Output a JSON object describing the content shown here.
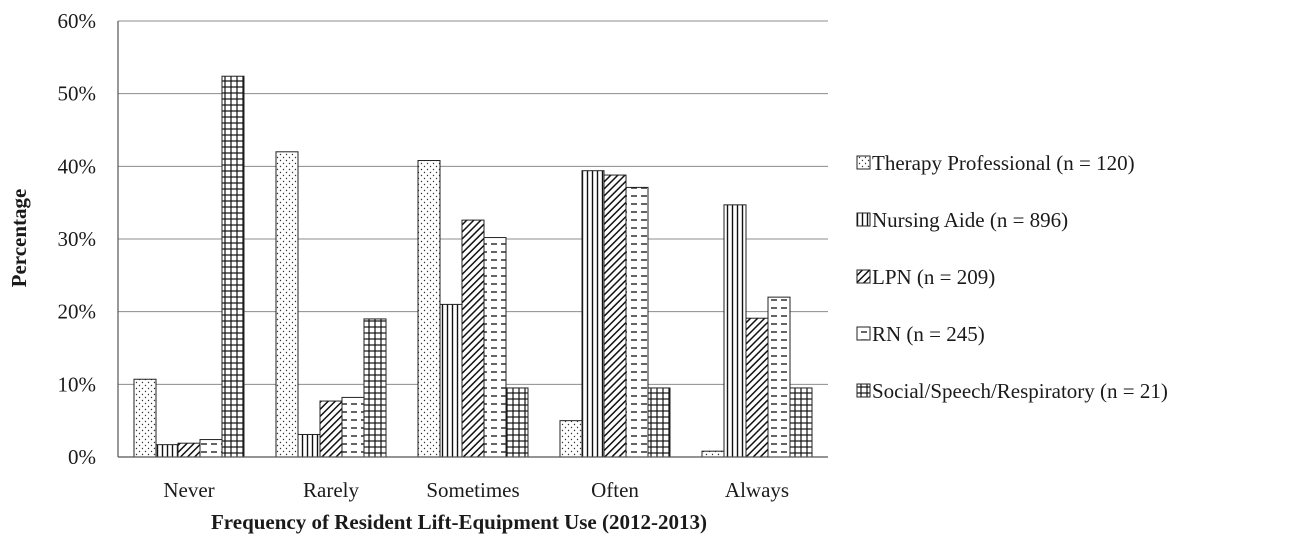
{
  "chart_data": {
    "type": "bar",
    "title": "",
    "xlabel": "Frequency of Resident Lift-Equipment Use (2012-2013)",
    "ylabel": "Percentage",
    "categories": [
      "Never",
      "Rarely",
      "Sometimes",
      "Often",
      "Always"
    ],
    "ylim": [
      0,
      60
    ],
    "yticks": [
      "0%",
      "10%",
      "20%",
      "30%",
      "40%",
      "50%",
      "60%"
    ],
    "grid": true,
    "legend_position": "right",
    "series": [
      {
        "name": "Therapy Professional (n = 120)",
        "pattern": "dots",
        "values": [
          10.7,
          42.0,
          40.8,
          5.0,
          0.8
        ]
      },
      {
        "name": "Nursing Aide (n = 896)",
        "pattern": "vertical-lines",
        "values": [
          1.7,
          3.1,
          21.0,
          39.4,
          34.7
        ]
      },
      {
        "name": "LPN (n = 209)",
        "pattern": "diagonal-dark",
        "values": [
          1.9,
          7.7,
          32.6,
          38.8,
          19.1
        ]
      },
      {
        "name": "RN (n = 245)",
        "pattern": "horizontal-dashes",
        "values": [
          2.4,
          8.2,
          30.2,
          37.1,
          22.0
        ]
      },
      {
        "name": "Social/Speech/Respiratory (n = 21)",
        "pattern": "grid",
        "values": [
          52.4,
          19.0,
          9.5,
          9.5,
          9.5
        ]
      }
    ]
  }
}
